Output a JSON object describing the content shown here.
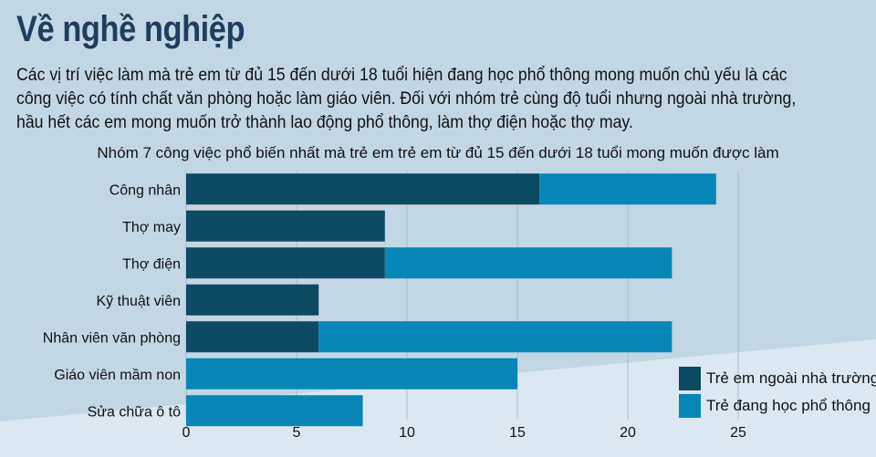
{
  "heading": "Về nghề nghiệp",
  "intro": "Các vị trí việc làm mà trẻ em từ đủ 15 đến dưới 18 tuổi hiện đang học phổ thông mong muốn chủ yếu là các công việc có tính chất văn phòng hoặc làm giáo viên. Đối với nhóm trẻ cùng độ tuổi nhưng ngoài nhà trường, hầu hết các em mong muốn trở thành lao động phổ thông, làm thợ điện hoặc thợ may.",
  "colors": {
    "background": "#c3d6e4",
    "background_light": "#dbe8f1",
    "heading": "#1f3e5c",
    "out_of_school": "#0d4a63",
    "in_school": "#0786b8"
  },
  "chart_data": {
    "type": "bar",
    "orientation": "horizontal",
    "stacked": true,
    "title": "Nhóm 7 công việc phổ biến nhất mà trẻ em trẻ em từ đủ 15 đến dưới 18 tuổi mong muốn được làm",
    "categories": [
      "Công nhân",
      "Thợ may",
      "Thợ điện",
      "Kỹ thuật viên",
      "Nhân viên văn phòng",
      "Giáo viên mầm non",
      "Sửa chữa ô tô"
    ],
    "series": [
      {
        "name": "Trẻ em ngoài nhà trường",
        "color": "#0d4a63",
        "values": [
          16,
          9,
          9,
          6,
          6,
          0,
          0
        ]
      },
      {
        "name": "Trẻ đang học phổ thông",
        "color": "#0786b8",
        "values": [
          8,
          0,
          13,
          0,
          16,
          15,
          8
        ]
      }
    ],
    "xlim": [
      0,
      25
    ],
    "xticks": [
      "0",
      "5",
      "10",
      "15",
      "20",
      "25"
    ],
    "grid": "vertical",
    "legend": "bottom-right"
  }
}
